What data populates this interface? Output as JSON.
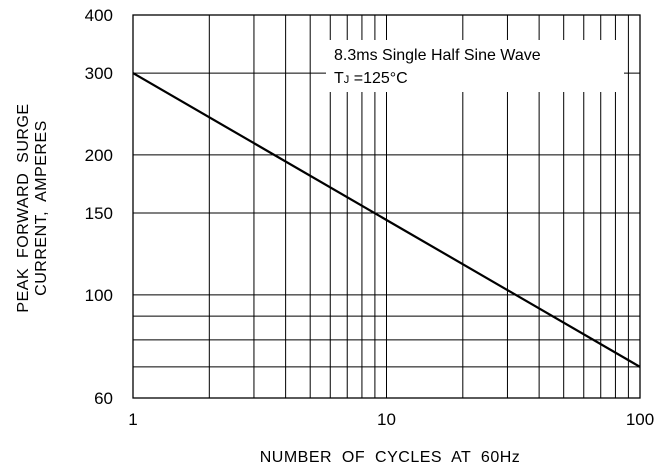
{
  "chart_data": {
    "type": "line",
    "title": "",
    "xlabel": "NUMBER  OF  CYCLES  AT  60Hz",
    "ylabel": [
      "PEAK  FORWARD  SURGE",
      "CURRENT,  AMPERES"
    ],
    "x_scale": "log",
    "y_scale": "log",
    "xlim": [
      1,
      100
    ],
    "ylim": [
      60,
      400
    ],
    "x_ticks": [
      1,
      10,
      100
    ],
    "x_tick_labels": [
      "1",
      "10",
      "100"
    ],
    "y_ticks": [
      60,
      100,
      150,
      200,
      300,
      400
    ],
    "y_tick_labels": [
      "60",
      "100",
      "150",
      "200",
      "300",
      "400"
    ],
    "x_grid": [
      2,
      3,
      4,
      5,
      6,
      7,
      8,
      9,
      20,
      30,
      40,
      50,
      60,
      70,
      80,
      90
    ],
    "y_grid": [
      70,
      80,
      90,
      100,
      150,
      200,
      300
    ],
    "grid": true,
    "annotation": {
      "line1": "8.3ms Single Half Sine Wave",
      "line2_main": "T",
      "line2_sub": "J",
      "line2_rest": " =125°C"
    },
    "series": [
      {
        "x": [
          1,
          100
        ],
        "y": [
          300,
          70
        ]
      }
    ],
    "line_color": "#000000"
  }
}
